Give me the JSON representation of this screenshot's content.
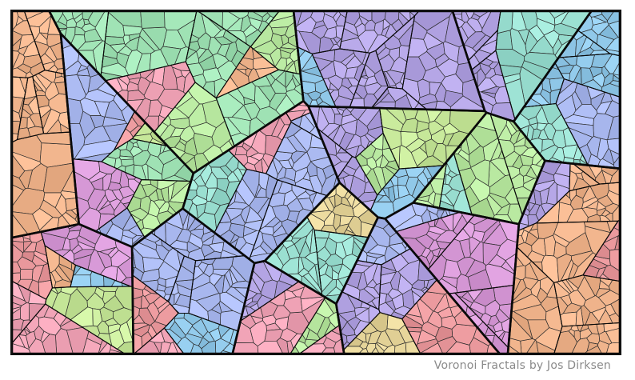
{
  "caption": "Voronoi Fractals by Jos Dirksen",
  "palette": [
    "#e8979b",
    "#9fe2b4",
    "#b3a4e4",
    "#8fc7e8",
    "#f0b48c",
    "#c7e89a",
    "#d89ad8",
    "#9be0d2",
    "#f2a5b8",
    "#a9b8ef",
    "#e6d59a",
    "#b8e8a0"
  ],
  "colors": {
    "cell_stroke": "#2c2c2c",
    "fracture_stroke": "#0a0a0a",
    "frame_border": "#111111",
    "caption_text": "#8a8a8a"
  }
}
